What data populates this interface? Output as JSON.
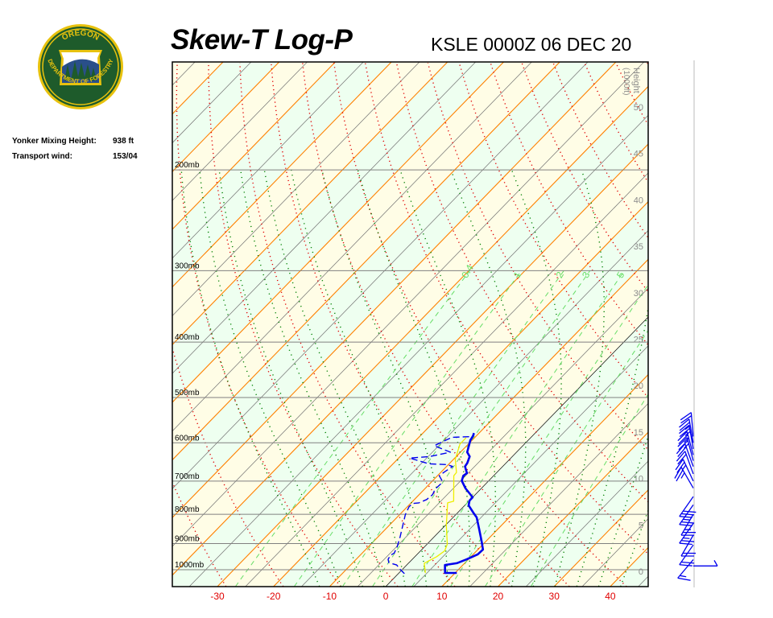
{
  "logo": {
    "top_text": "OREGON",
    "bottom_text": "DEPARTMENT OF FORESTRY",
    "colors": {
      "ring": "#e8c20e",
      "field": "#1e5b2b"
    }
  },
  "info": {
    "mixing_height_label": "Yonker Mixing Height:",
    "mixing_height_value": "938 ft",
    "transport_wind_label": "Transport wind:",
    "transport_wind_value": "153/04"
  },
  "chart_data": {
    "type": "line",
    "title": "Skew-T Log-P",
    "subtitle": "KSLE 0000Z 06 DEC 20",
    "xlabel": "",
    "ylabel": "",
    "xlim": [
      -35,
      45
    ],
    "ylim_mb": [
      1070,
      129
    ],
    "y_scale": "log-pressure",
    "x_ticks": [
      -30,
      -20,
      -10,
      0,
      10,
      20,
      30,
      40
    ],
    "pressure_levels": [
      {
        "p": 200,
        "label": "200mb"
      },
      {
        "p": 300,
        "label": "300mb"
      },
      {
        "p": 400,
        "label": "400mb"
      },
      {
        "p": 500,
        "label": "500mb"
      },
      {
        "p": 600,
        "label": "600mb"
      },
      {
        "p": 700,
        "label": "700mb"
      },
      {
        "p": 800,
        "label": "800mb"
      },
      {
        "p": 900,
        "label": "900mb"
      },
      {
        "p": 1000,
        "label": "1000mb"
      }
    ],
    "height_axis": {
      "label": "Height",
      "unit": "(1000ft)",
      "ticks": [
        0,
        5,
        10,
        15,
        20,
        25,
        30,
        35,
        40,
        45,
        50
      ]
    },
    "mixing_ratio_lines": [
      {
        "w": 0.4,
        "label": "0.4"
      },
      {
        "w": 1,
        "label": "1"
      },
      {
        "w": 2,
        "label": "2"
      },
      {
        "w": 3,
        "label": "3"
      },
      {
        "w": 5,
        "label": "5"
      },
      {
        "w": 8,
        "label": ""
      },
      {
        "w": 12,
        "label": ""
      },
      {
        "w": 20,
        "label": ""
      }
    ],
    "colors": {
      "temperature": "#0000ee",
      "dewpoint": "#0000ee",
      "wetbulb": "#eeee00",
      "isotherm_10": "#ff8000",
      "isotherm_0": "#000000",
      "isotherm_5": "#707070",
      "dry_adiabat": "#e00000",
      "moist_adiabat": "#008000",
      "mixing_ratio": "#66dd66",
      "band_a": "#fffde6",
      "band_b": "#eefff0",
      "tick_label": "#e00000",
      "wind": "#0000ee"
    },
    "series": [
      {
        "role": "temperature",
        "style": "thick-solid",
        "points": [
          [
            1013,
            10.3
          ],
          [
            1013,
            8.2
          ],
          [
            981,
            6.8
          ],
          [
            974,
            8.6
          ],
          [
            959,
            9.7
          ],
          [
            940,
            10.8
          ],
          [
            922,
            10.9
          ],
          [
            893,
            9.3
          ],
          [
            848,
            6.6
          ],
          [
            810,
            4.2
          ],
          [
            795,
            2.8
          ],
          [
            772,
            0.7
          ],
          [
            757,
            0.0
          ],
          [
            747,
            0.0
          ],
          [
            721,
            -2.8
          ],
          [
            699,
            -4.8
          ],
          [
            685,
            -5.4
          ],
          [
            678,
            -5.2
          ],
          [
            660,
            -6.7
          ],
          [
            651,
            -6.9
          ],
          [
            634,
            -7.6
          ],
          [
            623,
            -8.8
          ],
          [
            594,
            -10.3
          ],
          [
            583,
            -10.6
          ],
          [
            577,
            -10.9
          ]
        ]
      },
      {
        "role": "dewpoint",
        "style": "thin-dashed",
        "points": [
          [
            1016,
            1.1
          ],
          [
            1000,
            -0.3
          ],
          [
            981,
            -1.8
          ],
          [
            972,
            -3.6
          ],
          [
            959,
            -4.3
          ],
          [
            944,
            -4.6
          ],
          [
            935,
            -4.3
          ],
          [
            914,
            -4.8
          ],
          [
            875,
            -6.1
          ],
          [
            836,
            -7.6
          ],
          [
            801,
            -9.0
          ],
          [
            776,
            -9.7
          ],
          [
            766,
            -9.6
          ],
          [
            764,
            -8.6
          ],
          [
            754,
            -7.8
          ],
          [
            739,
            -7.6
          ],
          [
            723,
            -8.1
          ],
          [
            708,
            -8.0
          ],
          [
            697,
            -8.5
          ],
          [
            685,
            -9.7
          ],
          [
            674,
            -9.4
          ],
          [
            660,
            -8.9
          ],
          [
            655,
            -10.2
          ],
          [
            653,
            -13.6
          ],
          [
            638,
            -18.0
          ],
          [
            634,
            -14.7
          ],
          [
            623,
            -11.8
          ],
          [
            607,
            -15.8
          ],
          [
            587,
            -14.1
          ],
          [
            585,
            -10.6
          ]
        ]
      },
      {
        "role": "wetbulb",
        "style": "thin-solid",
        "points": [
          [
            1013,
            4.7
          ],
          [
            974,
            2.8
          ],
          [
            949,
            3.9
          ],
          [
            927,
            4.3
          ],
          [
            902,
            3.6
          ],
          [
            837,
            0.2
          ],
          [
            764,
            -3.5
          ],
          [
            759,
            -2.7
          ],
          [
            685,
            -7.1
          ],
          [
            676,
            -7.2
          ],
          [
            641,
            -9.7
          ],
          [
            628,
            -10.3
          ],
          [
            603,
            -11.5
          ],
          [
            588,
            -11.5
          ]
        ]
      }
    ],
    "winds": [
      {
        "p": 585,
        "dir": 355,
        "kt": 20
      },
      {
        "p": 600,
        "dir": 350,
        "kt": 25
      },
      {
        "p": 615,
        "dir": 350,
        "kt": 25
      },
      {
        "p": 630,
        "dir": 345,
        "kt": 25
      },
      {
        "p": 645,
        "dir": 345,
        "kt": 25
      },
      {
        "p": 660,
        "dir": 340,
        "kt": 20
      },
      {
        "p": 680,
        "dir": 340,
        "kt": 20
      },
      {
        "p": 700,
        "dir": 335,
        "kt": 25
      },
      {
        "p": 720,
        "dir": 330,
        "kt": 25
      },
      {
        "p": 745,
        "dir": 215,
        "kt": 30
      },
      {
        "p": 770,
        "dir": 215,
        "kt": 25
      },
      {
        "p": 800,
        "dir": 210,
        "kt": 25
      },
      {
        "p": 830,
        "dir": 215,
        "kt": 25
      },
      {
        "p": 870,
        "dir": 210,
        "kt": 20
      },
      {
        "p": 905,
        "dir": 215,
        "kt": 20
      },
      {
        "p": 960,
        "dir": 220,
        "kt": 15
      },
      {
        "p": 985,
        "dir": 90,
        "kt": 5
      }
    ]
  }
}
